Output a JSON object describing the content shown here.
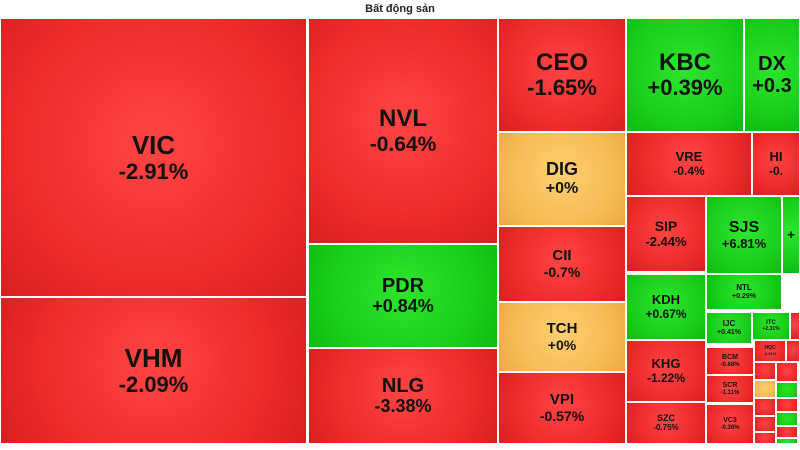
{
  "title": "Bất động sản",
  "colors": {
    "down": "#ee2d2d",
    "up": "#1ed11e",
    "flat": "#f7bb55"
  },
  "chart_data": {
    "type": "heatmap",
    "title": "Bất động sản",
    "items": [
      {
        "symbol": "VIC",
        "change": "-2.91%",
        "value": -2.91
      },
      {
        "symbol": "VHM",
        "change": "-2.09%",
        "value": -2.09
      },
      {
        "symbol": "NVL",
        "change": "-0.64%",
        "value": -0.64
      },
      {
        "symbol": "PDR",
        "change": "+0.84%",
        "value": 0.84
      },
      {
        "symbol": "NLG",
        "change": "-3.38%",
        "value": -3.38
      },
      {
        "symbol": "CEO",
        "change": "-1.65%",
        "value": -1.65
      },
      {
        "symbol": "DIG",
        "change": "+0%",
        "value": 0
      },
      {
        "symbol": "CII",
        "change": "-0.7%",
        "value": -0.7
      },
      {
        "symbol": "TCH",
        "change": "+0%",
        "value": 0
      },
      {
        "symbol": "VPI",
        "change": "-0.57%",
        "value": -0.57
      },
      {
        "symbol": "KBC",
        "change": "+0.39%",
        "value": 0.39
      },
      {
        "symbol": "DX",
        "change": "+0.3",
        "value": 0.3
      },
      {
        "symbol": "VRE",
        "change": "-0.4%",
        "value": -0.4
      },
      {
        "symbol": "HI",
        "change": "-0.",
        "value": null
      },
      {
        "symbol": "SIP",
        "change": "-2.44%",
        "value": -2.44
      },
      {
        "symbol": "SJS",
        "change": "+6.81%",
        "value": 6.81
      },
      {
        "symbol": "",
        "change": "+",
        "value": null
      },
      {
        "symbol": "NTL",
        "change": "+0.29%",
        "value": 0.29
      },
      {
        "symbol": "KDH",
        "change": "+0.67%",
        "value": 0.67
      },
      {
        "symbol": "IJC",
        "change": "+0.41%",
        "value": 0.41
      },
      {
        "symbol": "ITC",
        "change": "+2.31%",
        "value": 2.31
      },
      {
        "symbol": "KHG",
        "change": "-1.22%",
        "value": -1.22
      },
      {
        "symbol": "BCM",
        "change": "-0.68%",
        "value": -0.68
      },
      {
        "symbol": "HQC",
        "change": "-0.61%",
        "value": -0.61
      },
      {
        "symbol": "SCR",
        "change": "-1.11%",
        "value": -1.11
      },
      {
        "symbol": "SZC",
        "change": "-0.75%",
        "value": -0.75
      },
      {
        "symbol": "VC3",
        "change": "-0.36%",
        "value": -0.36
      },
      {
        "symbol": "",
        "change": "",
        "value": null
      },
      {
        "symbol": "",
        "change": "",
        "value": null
      },
      {
        "symbol": "",
        "change": "",
        "value": null
      },
      {
        "symbol": "",
        "change": "",
        "value": null
      },
      {
        "symbol": "",
        "change": "",
        "value": null
      },
      {
        "symbol": "",
        "change": "",
        "value": null
      },
      {
        "symbol": "",
        "change": "",
        "value": null
      },
      {
        "symbol": "",
        "change": "",
        "value": null
      },
      {
        "symbol": "",
        "change": "",
        "value": null
      },
      {
        "symbol": "",
        "change": "",
        "value": null
      },
      {
        "symbol": "",
        "change": "",
        "value": null
      },
      {
        "symbol": "",
        "change": "",
        "value": null
      },
      {
        "symbol": "",
        "change": "",
        "value": null
      },
      {
        "symbol": "",
        "change": "",
        "value": null
      },
      {
        "symbol": "",
        "change": "",
        "value": null
      },
      {
        "symbol": "",
        "change": "",
        "value": null
      }
    ]
  }
}
